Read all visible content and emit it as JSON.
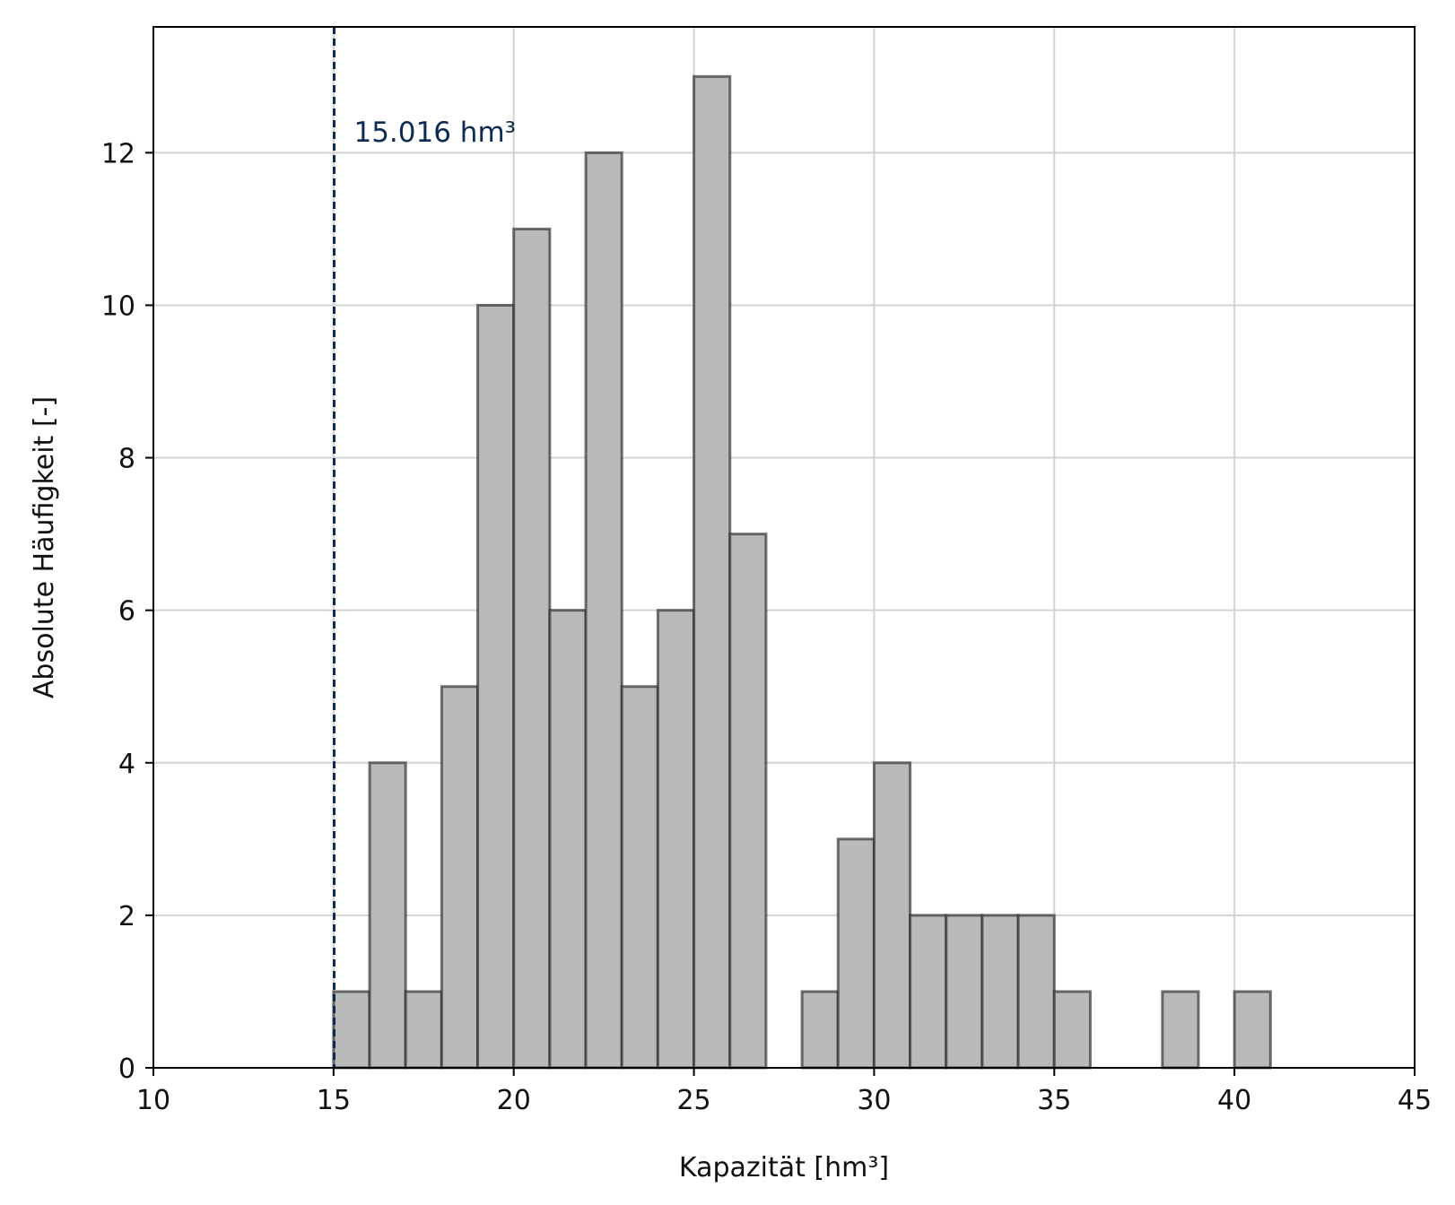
{
  "chart_data": {
    "type": "bar",
    "subtype": "histogram",
    "xlabel": "Kapazität [hm³]",
    "ylabel": "Absolute Häufigkeit [-]",
    "xlim": [
      10,
      45
    ],
    "ylim": [
      0,
      13.65
    ],
    "xticks": [
      10,
      15,
      20,
      25,
      30,
      35,
      40,
      45
    ],
    "yticks": [
      0,
      2,
      4,
      6,
      8,
      10,
      12
    ],
    "grid": true,
    "bin_width": 1,
    "bars": [
      {
        "x0": 15,
        "x1": 16,
        "count": 1
      },
      {
        "x0": 16,
        "x1": 17,
        "count": 4
      },
      {
        "x0": 17,
        "x1": 18,
        "count": 1
      },
      {
        "x0": 18,
        "x1": 19,
        "count": 5
      },
      {
        "x0": 19,
        "x1": 20,
        "count": 10
      },
      {
        "x0": 20,
        "x1": 21,
        "count": 11
      },
      {
        "x0": 21,
        "x1": 22,
        "count": 6
      },
      {
        "x0": 22,
        "x1": 23,
        "count": 12
      },
      {
        "x0": 23,
        "x1": 24,
        "count": 5
      },
      {
        "x0": 24,
        "x1": 25,
        "count": 6
      },
      {
        "x0": 25,
        "x1": 26,
        "count": 13
      },
      {
        "x0": 26,
        "x1": 27,
        "count": 7
      },
      {
        "x0": 28,
        "x1": 29,
        "count": 1
      },
      {
        "x0": 29,
        "x1": 30,
        "count": 3
      },
      {
        "x0": 30,
        "x1": 31,
        "count": 4
      },
      {
        "x0": 31,
        "x1": 32,
        "count": 2
      },
      {
        "x0": 32,
        "x1": 33,
        "count": 2
      },
      {
        "x0": 33,
        "x1": 34,
        "count": 2
      },
      {
        "x0": 34,
        "x1": 35,
        "count": 2
      },
      {
        "x0": 35,
        "x1": 36,
        "count": 1
      },
      {
        "x0": 38,
        "x1": 39,
        "count": 1
      },
      {
        "x0": 40,
        "x1": 41,
        "count": 1
      }
    ],
    "bar_fill": "#b8b9b8",
    "bar_edge": "#2a2a2a",
    "annotation": {
      "x": 15.016,
      "label": "15.016 hm³",
      "color": "#0c2b52",
      "style": "dashed"
    }
  }
}
